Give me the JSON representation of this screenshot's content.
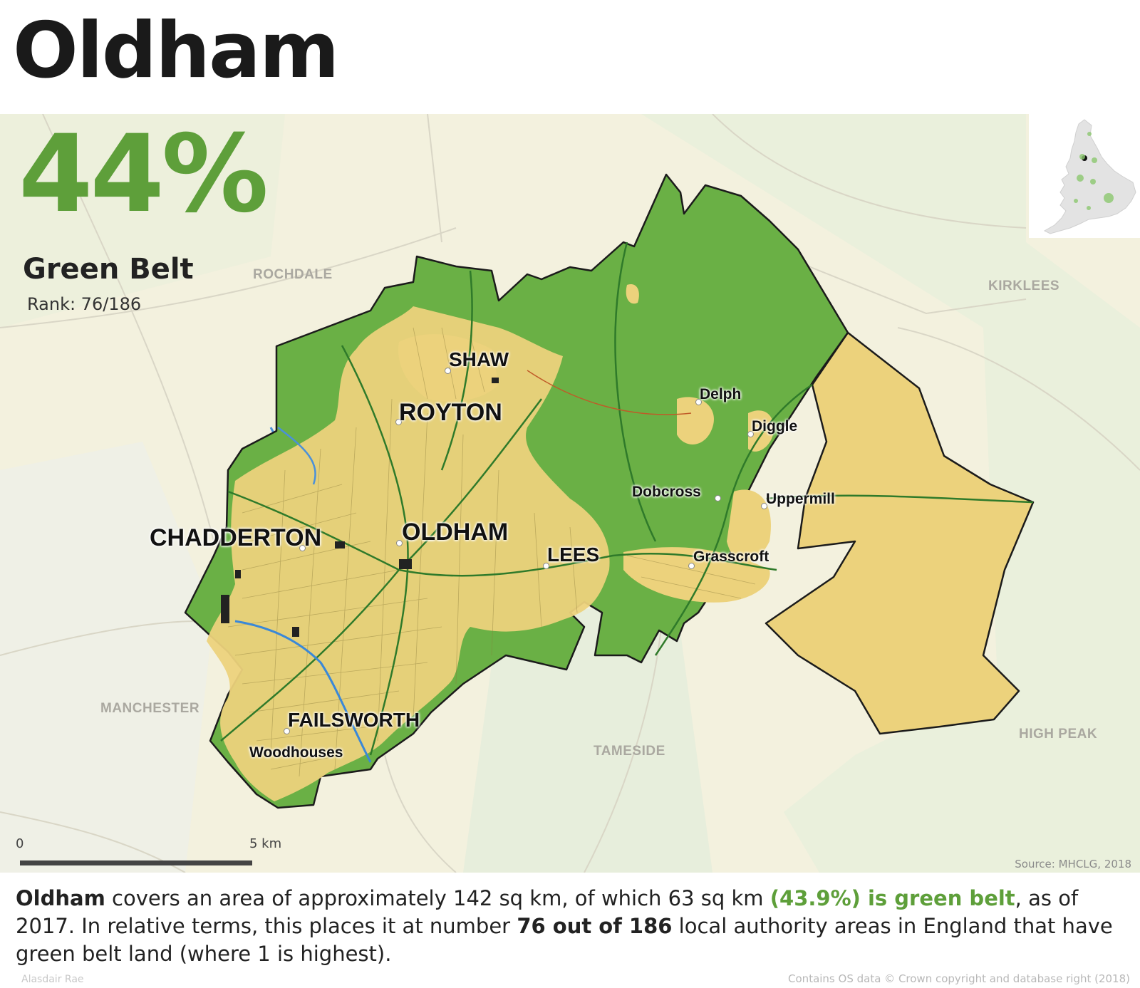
{
  "title": "Oldham",
  "headline": {
    "percent": "44%",
    "label": "Green Belt",
    "rank": "Rank: 76/186"
  },
  "places": {
    "shaw": "SHAW",
    "royton": "ROYTON",
    "chadderton": "CHADDERTON",
    "oldham": "OLDHAM",
    "lees": "LEES",
    "failsworth": "FAILSWORTH",
    "woodhouses": "Woodhouses",
    "delph": "Delph",
    "diggle": "Diggle",
    "dobcross": "Dobcross",
    "uppermill": "Uppermill",
    "grasscroft": "Grasscroft"
  },
  "districts": {
    "rochdale": "ROCHDALE",
    "kirklees": "KIRKLEES",
    "manchester": "MANCHESTER",
    "tameside": "TAMESIDE",
    "high_peak": "HIGH PEAK"
  },
  "scale": {
    "start": "0",
    "end": "5 km"
  },
  "source": "Source: MHCLG, 2018",
  "description": {
    "name": "Oldham",
    "part1": " covers an area of approximately 142 sq km, of which 63 sq km ",
    "green": "(43.9%) is green belt",
    "part2": ", as of 2017. In relative terms, this places it at number ",
    "rank_phrase": "76 out of 186",
    "part3": " local authority areas in England that have green belt land (where 1 is highest)."
  },
  "footer": {
    "author": "Alasdair Rae",
    "copyright": "Contains OS data © Crown copyright and database right (2018)"
  },
  "colors": {
    "green_belt": "#6ab045",
    "urban": "#ecd27c",
    "headline_green": "#5e9f3a",
    "background": "#f1f0dc"
  },
  "area": {
    "total_sq_km": 142,
    "green_belt_sq_km": 63,
    "green_belt_percent": 43.9,
    "rank": 76,
    "rank_total": 186,
    "year": 2017
  }
}
